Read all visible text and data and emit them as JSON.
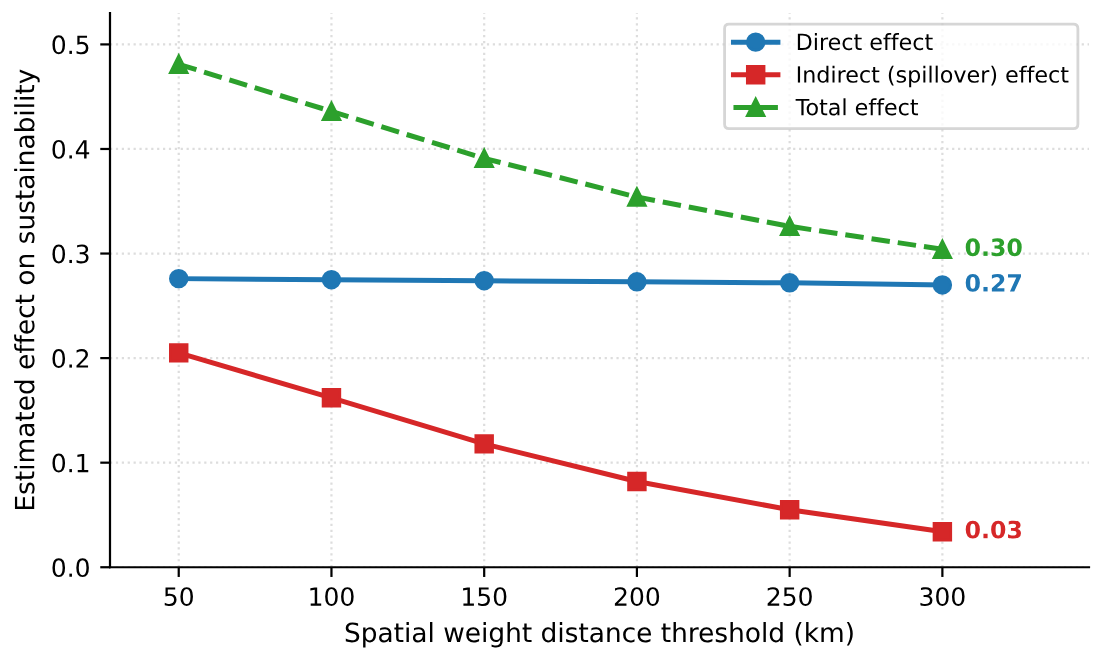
{
  "chart_data": {
    "type": "line",
    "xlabel": "Spatial weight distance threshold (km)",
    "ylabel": "Estimated effect on sustainability",
    "x": [
      50,
      100,
      150,
      200,
      250,
      300
    ],
    "series": [
      {
        "name": "Direct effect",
        "color": "#1f77b4",
        "marker": "circle",
        "line_style": "solid",
        "values": [
          0.276,
          0.275,
          0.274,
          0.273,
          0.272,
          0.27
        ],
        "value_labels": [
          null,
          null,
          null,
          null,
          null,
          "0.27"
        ]
      },
      {
        "name": "Indirect (spillover) effect",
        "color": "#d62728",
        "marker": "square",
        "line_style": "solid",
        "values": [
          0.205,
          0.162,
          0.118,
          0.082,
          0.055,
          0.034
        ],
        "value_labels": [
          null,
          null,
          null,
          null,
          null,
          "0.03"
        ]
      },
      {
        "name": "Total effect",
        "color": "#2ca02c",
        "marker": "triangle",
        "line_style": "dashed",
        "values": [
          0.481,
          0.436,
          0.391,
          0.354,
          0.326,
          0.304
        ],
        "value_labels": [
          null,
          null,
          null,
          null,
          null,
          "0.30"
        ]
      }
    ],
    "xlim": [
      27.5,
      348
    ],
    "xticks": [
      50,
      100,
      150,
      200,
      250,
      300
    ],
    "ylim": [
      0,
      0.53
    ],
    "yticks": [
      {
        "value": 0,
        "label": "0.0"
      },
      0.1,
      0.2,
      0.3,
      0.4,
      0.5
    ],
    "grid": true,
    "legend": "top right"
  }
}
